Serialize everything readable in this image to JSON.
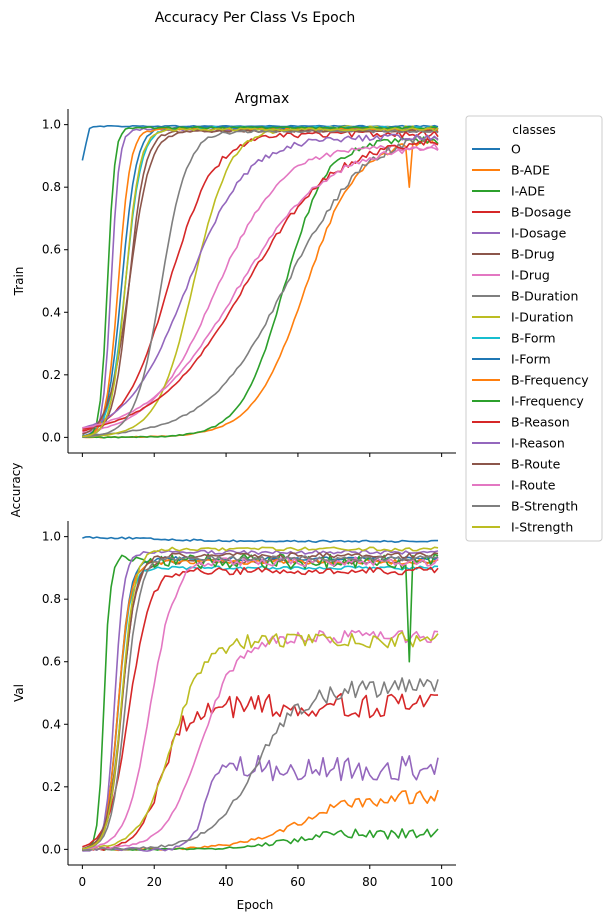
{
  "suptitle": "Accuracy Per Class Vs Epoch",
  "shared_ylabel": "Accuracy",
  "legend": {
    "title": "classes",
    "placement": "right",
    "entries": [
      {
        "name": "O",
        "color": "#1f77b4"
      },
      {
        "name": "B-ADE",
        "color": "#ff7f0e"
      },
      {
        "name": "I-ADE",
        "color": "#2ca02c"
      },
      {
        "name": "B-Dosage",
        "color": "#d62728"
      },
      {
        "name": "I-Dosage",
        "color": "#9467bd"
      },
      {
        "name": "B-Drug",
        "color": "#8c564b"
      },
      {
        "name": "I-Drug",
        "color": "#e377c2"
      },
      {
        "name": "B-Duration",
        "color": "#7f7f7f"
      },
      {
        "name": "I-Duration",
        "color": "#bcbd22"
      },
      {
        "name": "B-Form",
        "color": "#17becf"
      },
      {
        "name": "I-Form",
        "color": "#1f77b4"
      },
      {
        "name": "B-Frequency",
        "color": "#ff7f0e"
      },
      {
        "name": "I-Frequency",
        "color": "#2ca02c"
      },
      {
        "name": "B-Reason",
        "color": "#d62728"
      },
      {
        "name": "I-Reason",
        "color": "#9467bd"
      },
      {
        "name": "B-Route",
        "color": "#8c564b"
      },
      {
        "name": "I-Route",
        "color": "#e377c2"
      },
      {
        "name": "B-Strength",
        "color": "#7f7f7f"
      },
      {
        "name": "I-Strength",
        "color": "#bcbd22"
      }
    ]
  },
  "chart_data": [
    {
      "type": "line",
      "title": "Argmax",
      "ylabel": "Train",
      "xlabel": "",
      "xlim": [
        -4,
        104
      ],
      "ylim": [
        -0.05,
        1.05
      ],
      "xticks": [
        0,
        20,
        40,
        60,
        80,
        100
      ],
      "yticks": [
        "0.0",
        "0.2",
        "0.4",
        "0.6",
        "0.8",
        "1.0"
      ],
      "grid": false,
      "series": [
        {
          "name": "O",
          "color": "#1f77b4",
          "style": "sigmoid",
          "start": 0.88,
          "end": 0.995,
          "mid": 1,
          "rate": 3.0,
          "noise": 0.002
        },
        {
          "name": "B-ADE",
          "color": "#ff7f0e",
          "style": "sigmoid",
          "start": 0.0,
          "end": 0.95,
          "mid": 62,
          "rate": 0.14,
          "noise": 0.01,
          "dip": [
            91,
            0.8
          ]
        },
        {
          "name": "I-ADE",
          "color": "#2ca02c",
          "style": "sigmoid",
          "start": 0.0,
          "end": 0.95,
          "mid": 56,
          "rate": 0.17,
          "noise": 0.012
        },
        {
          "name": "B-Dosage",
          "color": "#d62728",
          "style": "sigmoid",
          "start": 0.0,
          "end": 0.97,
          "mid": 24,
          "rate": 0.16,
          "noise": 0.01
        },
        {
          "name": "I-Dosage",
          "color": "#9467bd",
          "style": "sigmoid",
          "start": 0.0,
          "end": 0.985,
          "mid": 8,
          "rate": 0.9,
          "noise": 0.004
        },
        {
          "name": "B-Drug",
          "color": "#8c564b",
          "style": "sigmoid",
          "start": 0.0,
          "end": 0.98,
          "mid": 13,
          "rate": 0.45,
          "noise": 0.004
        },
        {
          "name": "I-Drug",
          "color": "#e377c2",
          "style": "sigmoid",
          "start": 0.0,
          "end": 0.93,
          "mid": 37,
          "rate": 0.11,
          "noise": 0.01
        },
        {
          "name": "B-Duration",
          "color": "#7f7f7f",
          "style": "sigmoid",
          "start": 0.0,
          "end": 0.99,
          "mid": 57,
          "rate": 0.09,
          "noise": 0.015
        },
        {
          "name": "I-Duration",
          "color": "#bcbd22",
          "style": "sigmoid",
          "start": 0.0,
          "end": 0.99,
          "mid": 31,
          "rate": 0.2,
          "noise": 0.006
        },
        {
          "name": "B-Form",
          "color": "#17becf",
          "style": "sigmoid",
          "start": 0.0,
          "end": 0.99,
          "mid": 12,
          "rate": 0.45,
          "noise": 0.004
        },
        {
          "name": "I-Form",
          "color": "#1f77b4",
          "style": "sigmoid",
          "start": 0.0,
          "end": 0.99,
          "mid": 11,
          "rate": 0.5,
          "noise": 0.004
        },
        {
          "name": "B-Frequency",
          "color": "#ff7f0e",
          "style": "sigmoid",
          "start": 0.0,
          "end": 0.985,
          "mid": 10,
          "rate": 0.6,
          "noise": 0.004
        },
        {
          "name": "I-Frequency",
          "color": "#2ca02c",
          "style": "sigmoid",
          "start": 0.0,
          "end": 0.99,
          "mid": 7,
          "rate": 1.0,
          "noise": 0.003
        },
        {
          "name": "B-Reason",
          "color": "#d62728",
          "style": "sigmoid",
          "start": 0.0,
          "end": 0.96,
          "mid": 45,
          "rate": 0.08,
          "noise": 0.012
        },
        {
          "name": "I-Reason",
          "color": "#9467bd",
          "style": "sigmoid",
          "start": 0.0,
          "end": 0.96,
          "mid": 29,
          "rate": 0.12,
          "noise": 0.01
        },
        {
          "name": "B-Route",
          "color": "#8c564b",
          "style": "sigmoid",
          "start": 0.0,
          "end": 0.98,
          "mid": 13,
          "rate": 0.35,
          "noise": 0.004
        },
        {
          "name": "I-Route",
          "color": "#e377c2",
          "style": "sigmoid",
          "start": 0.0,
          "end": 0.94,
          "mid": 43,
          "rate": 0.08,
          "noise": 0.012
        },
        {
          "name": "B-Strength",
          "color": "#7f7f7f",
          "style": "sigmoid",
          "start": 0.0,
          "end": 0.98,
          "mid": 22,
          "rate": 0.28,
          "noise": 0.006
        },
        {
          "name": "I-Strength",
          "color": "#bcbd22",
          "style": "sigmoid",
          "start": 0.0,
          "end": 0.985,
          "mid": 12,
          "rate": 0.5,
          "noise": 0.004
        }
      ]
    },
    {
      "type": "line",
      "title": "",
      "ylabel": "Val",
      "xlabel": "Epoch",
      "xlim": [
        -4,
        104
      ],
      "ylim": [
        -0.05,
        1.05
      ],
      "xticks": [
        "0",
        "20",
        "40",
        "60",
        "80",
        "100"
      ],
      "yticks": [
        "0.0",
        "0.2",
        "0.4",
        "0.6",
        "0.8",
        "1.0"
      ],
      "grid": false,
      "series": [
        {
          "name": "O",
          "color": "#1f77b4",
          "style": "sigmoid",
          "start": 1.0,
          "end": 0.985,
          "mid": 20,
          "rate": 0.1,
          "noise": 0.003
        },
        {
          "name": "B-ADE",
          "color": "#ff7f0e",
          "style": "sigmoid",
          "start": 0.0,
          "end": 0.17,
          "mid": 60,
          "rate": 0.12,
          "noise": 0.025
        },
        {
          "name": "I-ADE",
          "color": "#2ca02c",
          "style": "sigmoid",
          "start": 0.0,
          "end": 0.05,
          "mid": 56,
          "rate": 0.15,
          "noise": 0.018
        },
        {
          "name": "B-Dosage",
          "color": "#d62728",
          "style": "sigmoid",
          "start": 0.0,
          "end": 0.46,
          "mid": 22,
          "rate": 0.3,
          "noise": 0.04
        },
        {
          "name": "I-Dosage",
          "color": "#9467bd",
          "style": "sigmoid",
          "start": 0.0,
          "end": 0.26,
          "mid": 34,
          "rate": 0.5,
          "noise": 0.04
        },
        {
          "name": "B-Drug",
          "color": "#8c564b",
          "style": "sigmoid",
          "start": 0.0,
          "end": 0.92,
          "mid": 11,
          "rate": 0.55,
          "noise": 0.008
        },
        {
          "name": "I-Drug",
          "color": "#e377c2",
          "style": "sigmoid",
          "start": 0.0,
          "end": 0.68,
          "mid": 33,
          "rate": 0.2,
          "noise": 0.02
        },
        {
          "name": "B-Duration",
          "color": "#7f7f7f",
          "style": "sigmoid",
          "start": 0.0,
          "end": 0.52,
          "mid": 48,
          "rate": 0.15,
          "noise": 0.03
        },
        {
          "name": "I-Duration",
          "color": "#bcbd22",
          "style": "sigmoid",
          "start": 0.0,
          "end": 0.67,
          "mid": 25,
          "rate": 0.22,
          "noise": 0.025
        },
        {
          "name": "B-Form",
          "color": "#17becf",
          "style": "sigmoid",
          "start": 0.0,
          "end": 0.9,
          "mid": 10,
          "rate": 0.6,
          "noise": 0.006
        },
        {
          "name": "I-Form",
          "color": "#1f77b4",
          "style": "sigmoid",
          "start": 0.0,
          "end": 0.93,
          "mid": 10,
          "rate": 0.6,
          "noise": 0.006
        },
        {
          "name": "B-Frequency",
          "color": "#ff7f0e",
          "style": "sigmoid",
          "start": 0.0,
          "end": 0.92,
          "mid": 10,
          "rate": 0.6,
          "noise": 0.008
        },
        {
          "name": "I-Frequency",
          "color": "#2ca02c",
          "style": "sigmoid",
          "start": 0.0,
          "end": 0.92,
          "mid": 6,
          "rate": 1.2,
          "noise": 0.025,
          "dip": [
            91,
            0.6
          ]
        },
        {
          "name": "B-Reason",
          "color": "#d62728",
          "style": "sigmoid",
          "start": 0.0,
          "end": 0.89,
          "mid": 13,
          "rate": 0.35,
          "noise": 0.012
        },
        {
          "name": "I-Reason",
          "color": "#9467bd",
          "style": "sigmoid",
          "start": 0.0,
          "end": 0.95,
          "mid": 9,
          "rate": 0.8,
          "noise": 0.006
        },
        {
          "name": "B-Route",
          "color": "#8c564b",
          "style": "sigmoid",
          "start": 0.0,
          "end": 0.94,
          "mid": 11,
          "rate": 0.5,
          "noise": 0.008
        },
        {
          "name": "I-Route",
          "color": "#e377c2",
          "style": "sigmoid",
          "start": 0.0,
          "end": 0.92,
          "mid": 19,
          "rate": 0.3,
          "noise": 0.015
        },
        {
          "name": "B-Strength",
          "color": "#7f7f7f",
          "style": "sigmoid",
          "start": 0.0,
          "end": 0.93,
          "mid": 12,
          "rate": 0.5,
          "noise": 0.008
        },
        {
          "name": "I-Strength",
          "color": "#bcbd22",
          "style": "sigmoid",
          "start": 0.0,
          "end": 0.96,
          "mid": 11,
          "rate": 0.55,
          "noise": 0.006
        }
      ]
    }
  ]
}
